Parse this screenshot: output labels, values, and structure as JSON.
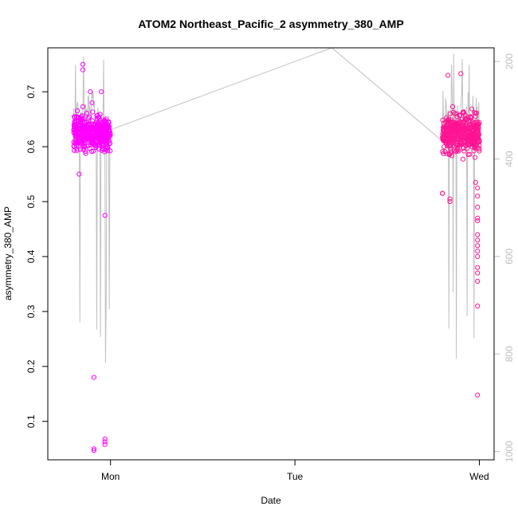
{
  "chart_data": {
    "type": "scatter",
    "title": "ATOM2 Northeast_Pacific_2 asymmetry_380_AMP",
    "xlabel": "Date",
    "ylabel": "asymmetry_380_AMP",
    "x_ticks": [
      "Mon",
      "Tue",
      "Wed"
    ],
    "x_tick_days": [
      1,
      2,
      3
    ],
    "xlim_days": [
      0.66,
      3.08
    ],
    "y_ticks": [
      0.1,
      0.2,
      0.3,
      0.4,
      0.5,
      0.6,
      0.7
    ],
    "ylim": [
      0.03,
      0.78
    ],
    "y2_ticks": [
      200,
      400,
      600,
      800,
      1000
    ],
    "y2lim": [
      1017,
      172
    ],
    "grid": false,
    "legend": "none",
    "colors": {
      "series1": "#ff00ff",
      "series2": "#ff1493",
      "depth_line": "#c0c0c0",
      "right_axis": "#bdbdbd"
    },
    "series": [
      {
        "x_range_days": [
          0.8,
          1.0
        ],
        "typical_range": [
          0.56,
          0.69
        ],
        "outliers": [
          [
            0.85,
            0.75
          ],
          [
            0.85,
            0.74
          ],
          [
            0.89,
            0.7
          ],
          [
            0.9,
            0.68
          ],
          [
            0.91,
            0.18
          ],
          [
            0.91,
            0.05
          ],
          [
            0.91,
            0.047
          ],
          [
            0.95,
            0.7
          ],
          [
            0.97,
            0.475
          ],
          [
            0.97,
            0.068
          ],
          [
            0.97,
            0.063
          ],
          [
            0.97,
            0.058
          ],
          [
            0.83,
            0.55
          ]
        ]
      },
      {
        "x_range_days": [
          2.8,
          3.0
        ],
        "typical_range": [
          0.55,
          0.7
        ],
        "outliers": [
          [
            2.8,
            0.515
          ],
          [
            2.8,
            0.515
          ],
          [
            2.83,
            0.73
          ],
          [
            2.84,
            0.5
          ],
          [
            2.84,
            0.505
          ],
          [
            2.9,
            0.733
          ],
          [
            2.98,
            0.535
          ],
          [
            2.99,
            0.525
          ],
          [
            2.99,
            0.51
          ],
          [
            2.99,
            0.49
          ],
          [
            2.99,
            0.47
          ],
          [
            2.99,
            0.465
          ],
          [
            2.99,
            0.44
          ],
          [
            2.99,
            0.43
          ],
          [
            2.99,
            0.42
          ],
          [
            2.99,
            0.41
          ],
          [
            2.99,
            0.4
          ],
          [
            2.99,
            0.38
          ],
          [
            2.99,
            0.37
          ],
          [
            2.99,
            0.355
          ],
          [
            2.99,
            0.31
          ],
          [
            2.99,
            0.148
          ]
        ]
      }
    ]
  }
}
